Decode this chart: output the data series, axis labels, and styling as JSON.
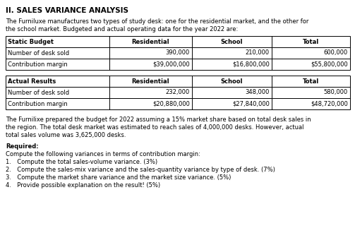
{
  "title": "II. SALES VARIANCE ANALYSIS",
  "intro_line1": "The Furniluxe manufactures two types of study desk: one for the residential market, and the other for",
  "intro_line2": "the school market. Budgeted and actual operating data for the year 2022 are:",
  "static_budget": {
    "header": [
      "Static Budget",
      "Residential",
      "School",
      "Total"
    ],
    "rows": [
      [
        "Number of desk sold",
        "390,000",
        "210,000",
        "600,000"
      ],
      [
        "Contribution margin",
        "$39,000,000",
        "$16,800,000",
        "$55,800,000"
      ]
    ]
  },
  "actual_results": {
    "header": [
      "Actual Results",
      "Residential",
      "School",
      "Total"
    ],
    "rows": [
      [
        "Number of desk sold",
        "232,000",
        "348,000",
        "580,000"
      ],
      [
        "Contribution margin",
        "$20,880,000",
        "$27,840,000",
        "$48,720,000"
      ]
    ]
  },
  "market_line1": "The Furnilixe prepared the budget for 2022 assuming a 15% market share based on total desk sales in",
  "market_line2": "the region. The total desk market was estimated to reach sales of 4,000,000 desks. However, actual",
  "market_line3": "total sales volume was 3,625,000 desks.",
  "required_label": "Required:",
  "required_intro": "Compute the following variances in terms of contribution margin:",
  "required_items": [
    "Compute the total sales-volume variance. (3%)",
    "Compute the sales-mix variance and the sales-quantity variance by type of desk. (7%)",
    "Compute the market share variance and the market size variance. (5%)",
    "Provide possible explanation on the result! (5%)"
  ],
  "bg_color": "#ffffff",
  "text_color": "#000000",
  "fs_title": 7.5,
  "fs_body": 6.0,
  "fs_table": 6.0
}
